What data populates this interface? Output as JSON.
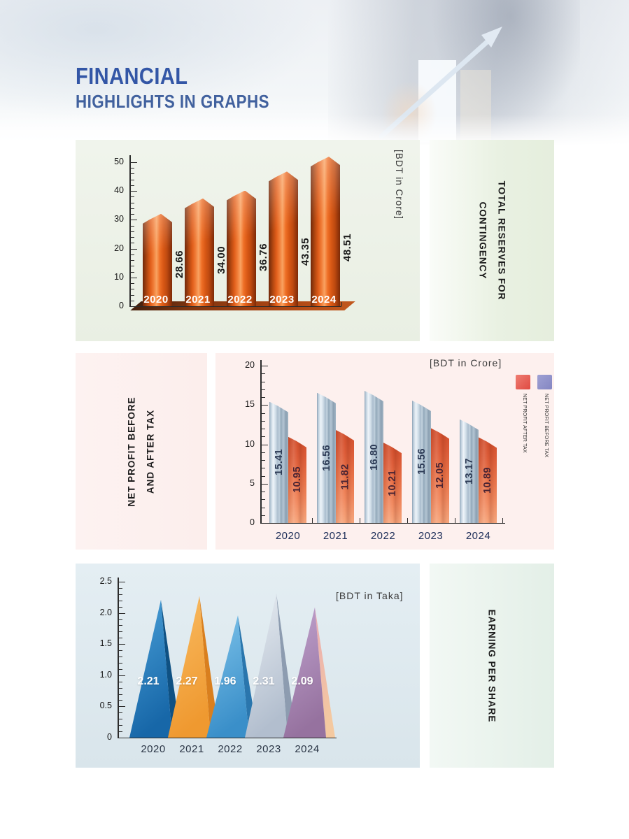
{
  "header": {
    "title_line1": "FINANCIAL",
    "title_line2": "HIGHLIGHTS IN GRAPHS"
  },
  "chart_data": [
    {
      "id": "total-reserves",
      "type": "bar",
      "title": "TOTAL RESERVES FOR CONTINGENCY",
      "side_label_lines": [
        "TOTAL RESERVES FOR",
        "CONTINGENCY"
      ],
      "unit_label": "[BDT in Crore]",
      "categories": [
        "2020",
        "2021",
        "2022",
        "2023",
        "2024"
      ],
      "values": [
        28.66,
        34.0,
        36.76,
        43.35,
        48.51
      ],
      "value_labels": [
        "28.66",
        "34.00",
        "36.76",
        "43.35",
        "48.51"
      ],
      "ylim": [
        0,
        50
      ],
      "ytick_step": 10,
      "y_minor_step": 2,
      "grid": false,
      "legend_position": "none",
      "bar_style_color": "#d8591a"
    },
    {
      "id": "net-profit",
      "type": "bar",
      "title": "NET PROFIT BEFORE AND AFTER TAX",
      "side_label_lines": [
        "NET PROFIT BEFORE",
        "AND AFTER TAX"
      ],
      "unit_label": "[BDT in Crore]",
      "categories": [
        "2020",
        "2021",
        "2022",
        "2023",
        "2024"
      ],
      "series": [
        {
          "name": "NET PROFIT BEFORE TAX",
          "values": [
            15.41,
            16.56,
            16.8,
            15.56,
            13.17
          ],
          "value_labels": [
            "15.41",
            "16.56",
            "16.80",
            "15.56",
            "13.17"
          ],
          "color": "#b9cbd9",
          "value_color": "#2c3a55"
        },
        {
          "name": "NET PROFIT AFTER TAX",
          "values": [
            10.95,
            11.82,
            10.21,
            12.05,
            10.89
          ],
          "value_labels": [
            "10.95",
            "11.82",
            "10.21",
            "12.05",
            "10.89"
          ],
          "color": "#ec7a50",
          "value_color": "#4a2433"
        }
      ],
      "legend": [
        {
          "label": "NET PROFIT AFTER TAX",
          "color_top": "#ef7d72",
          "color_bottom": "#df4a42"
        },
        {
          "label": "NET PROFIT BEFORE TAX",
          "color_top": "#9fa1d4",
          "color_bottom": "#8486c2"
        }
      ],
      "ylim": [
        0,
        20
      ],
      "ytick_step": 5,
      "y_minor_step": 1,
      "grid": false,
      "legend_position": "top-right"
    },
    {
      "id": "earning-per-share",
      "type": "bar",
      "title": "EARNING PER SHARE",
      "side_label_lines": [
        "EARNING PER SHARE"
      ],
      "unit_label": "[BDT in Taka]",
      "categories": [
        "2020",
        "2021",
        "2022",
        "2023",
        "2024"
      ],
      "values": [
        2.21,
        2.27,
        1.96,
        2.31,
        2.09
      ],
      "value_labels": [
        "2.21",
        "2.27",
        "1.96",
        "2.31",
        "2.09"
      ],
      "ylim": [
        0,
        2.5
      ],
      "ytick_step": 0.5,
      "y_minor_step": 0.1,
      "ytick_labels": [
        "0",
        "0.5",
        "1.0",
        "1.5",
        "2.0",
        "2.5"
      ],
      "grid": false,
      "legend_position": "none",
      "peak_colors": [
        {
          "main_top": "#4aa0d8",
          "main_bottom": "#1767a8",
          "side_top": "#0f5183",
          "side_bottom": "#0f5183"
        },
        {
          "main_top": "#f9bc63",
          "main_bottom": "#ef9930",
          "side_top": "#d97f1e",
          "side_bottom": "#d97f1e"
        },
        {
          "main_top": "#7ec3ea",
          "main_bottom": "#3a8fc9",
          "side_top": "#2a76ad",
          "side_bottom": "#2a76ad"
        },
        {
          "main_top": "#e9eef3",
          "main_bottom": "#b2bece",
          "side_top": "#8d9cb0",
          "side_bottom": "#8d9cb0"
        },
        {
          "main_top": "#c0a3cf",
          "main_bottom": "#96729f",
          "side_top": "#e9aab4",
          "side_bottom": "#f4c9a0"
        }
      ]
    }
  ]
}
